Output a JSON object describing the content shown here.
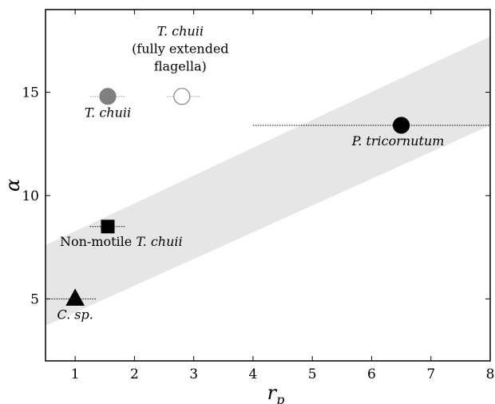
{
  "chart_data": {
    "type": "scatter",
    "title": "",
    "xlabel": "r",
    "xlabel_sub": "p",
    "ylabel": "α",
    "xlim": [
      0.5,
      8
    ],
    "ylim": [
      2,
      19
    ],
    "xticks": [
      1,
      2,
      3,
      4,
      5,
      6,
      7,
      8
    ],
    "yticks": [
      5,
      10,
      15
    ],
    "grid": false,
    "legend": "none",
    "band": {
      "color": "#e6e6e6",
      "lower": [
        [
          0.5,
          3.7
        ],
        [
          8,
          13.4
        ]
      ],
      "upper": [
        [
          0.5,
          7.6
        ],
        [
          8,
          17.7
        ]
      ]
    },
    "points": [
      {
        "id": "t-chuii",
        "x": 1.55,
        "y": 14.8,
        "xerr": [
          1.25,
          1.85
        ],
        "marker": "circle",
        "fill": "#808080",
        "stroke": "#808080",
        "label": [
          "T. chuii"
        ]
      },
      {
        "id": "t-chuii-extended",
        "x": 2.8,
        "y": 14.8,
        "xerr": [
          2.55,
          3.1
        ],
        "marker": "circle",
        "fill": "#ffffff",
        "stroke": "#808080",
        "label": [
          "T. chuii",
          "(fully extended",
          "flagella)"
        ]
      },
      {
        "id": "p-tricornutum",
        "x": 6.5,
        "y": 13.4,
        "xerr": [
          4.0,
          8.0
        ],
        "marker": "circle",
        "fill": "#000000",
        "stroke": "#000000",
        "label": [
          "P. tricornutum"
        ]
      },
      {
        "id": "non-motile-t-chuii",
        "x": 1.55,
        "y": 8.5,
        "xerr": [
          1.25,
          1.85
        ],
        "marker": "square",
        "fill": "#000000",
        "stroke": "#000000",
        "label": [
          "Non-motile",
          "T. chuii"
        ]
      },
      {
        "id": "c-sp",
        "x": 1.0,
        "y": 5.0,
        "xerr": [
          0.6,
          1.35
        ],
        "marker": "triangle",
        "fill": "#000000",
        "stroke": "#000000",
        "label": [
          "C. sp."
        ]
      }
    ]
  }
}
